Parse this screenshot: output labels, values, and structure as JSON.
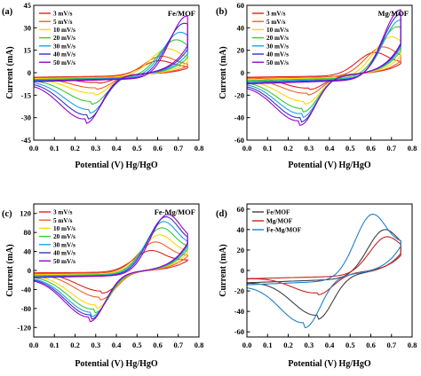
{
  "chart_data": [
    {
      "type": "line",
      "panel_label": "(a)",
      "sample": "Fe/MOF",
      "xlabel": "Potential (V) Hg/HgO",
      "ylabel": "Current (mA)",
      "xlim": [
        0.0,
        0.8
      ],
      "ylim": [
        -45,
        45
      ],
      "xticks": [
        "0.0",
        "0.1",
        "0.2",
        "0.3",
        "0.4",
        "0.5",
        "0.6",
        "0.7",
        "0.8"
      ],
      "yticks": [
        "-45",
        "-30",
        "-15",
        "0",
        "15",
        "30",
        "45"
      ],
      "legend_placement": "top-left",
      "series": [
        {
          "name": "3 mV/s",
          "color": "#e02020",
          "peak_ox": [
            0.61,
            8
          ],
          "peak_red": [
            0.31,
            -7
          ],
          "rest": -3,
          "e_max": 0.745
        },
        {
          "name": "5 mV/s",
          "color": "#f06020",
          "peak_ox": [
            0.62,
            11
          ],
          "peak_red": [
            0.3,
            -11
          ],
          "rest": -3.5,
          "e_max": 0.745
        },
        {
          "name": "10 mV/s",
          "color": "#ffd600",
          "peak_ox": [
            0.65,
            16
          ],
          "peak_red": [
            0.29,
            -15
          ],
          "rest": -4,
          "e_max": 0.745
        },
        {
          "name": "20 mV/s",
          "color": "#33cc33",
          "peak_ox": [
            0.69,
            22
          ],
          "peak_red": [
            0.28,
            -21
          ],
          "rest": -4.5,
          "e_max": 0.745
        },
        {
          "name": "30 mV/s",
          "color": "#1aa3e8",
          "peak_ox": [
            0.71,
            27
          ],
          "peak_red": [
            0.27,
            -27
          ],
          "rest": -5,
          "e_max": 0.745
        },
        {
          "name": "40 mV/s",
          "color": "#3333cc",
          "peak_ox": [
            0.73,
            33
          ],
          "peak_red": [
            0.26,
            -31
          ],
          "rest": -5.5,
          "e_max": 0.745
        },
        {
          "name": "50 mV/s",
          "color": "#9900cc",
          "peak_ox": [
            0.745,
            38
          ],
          "peak_red": [
            0.25,
            -34
          ],
          "rest": -6,
          "e_max": 0.745
        }
      ]
    },
    {
      "type": "line",
      "panel_label": "(b)",
      "sample": "Mg/MOF",
      "xlabel": "Potential (V) Hg/HgO",
      "ylabel": "Current (mA)",
      "xlim": [
        0.0,
        0.8
      ],
      "ylim": [
        -60,
        60
      ],
      "xticks": [
        "0.0",
        "0.1",
        "0.2",
        "0.3",
        "0.4",
        "0.5",
        "0.6",
        "0.7",
        "0.8"
      ],
      "yticks": [
        "-60",
        "-40",
        "-20",
        "0",
        "20",
        "40",
        "60"
      ],
      "legend_placement": "top-left",
      "series": [
        {
          "name": "3 mV/s",
          "color": "#e02020",
          "peak_ox": [
            0.62,
            18
          ],
          "peak_red": [
            0.3,
            -15
          ],
          "rest": -4,
          "e_max": 0.745
        },
        {
          "name": "5 mV/s",
          "color": "#f06020",
          "peak_ox": [
            0.66,
            23
          ],
          "peak_red": [
            0.29,
            -20
          ],
          "rest": -5,
          "e_max": 0.745
        },
        {
          "name": "10 mV/s",
          "color": "#ffd600",
          "peak_ox": [
            0.7,
            32
          ],
          "peak_red": [
            0.28,
            -28
          ],
          "rest": -6,
          "e_max": 0.745
        },
        {
          "name": "20 mV/s",
          "color": "#33cc33",
          "peak_ox": [
            0.73,
            41
          ],
          "peak_red": [
            0.27,
            -35
          ],
          "rest": -7,
          "e_max": 0.745
        },
        {
          "name": "30 mV/s",
          "color": "#1aa3e8",
          "peak_ox": [
            0.745,
            47
          ],
          "peak_red": [
            0.265,
            -40
          ],
          "rest": -8,
          "e_max": 0.745
        },
        {
          "name": "40 mV/s",
          "color": "#3333cc",
          "peak_ox": [
            0.745,
            52
          ],
          "peak_red": [
            0.26,
            -44
          ],
          "rest": -9,
          "e_max": 0.745
        },
        {
          "name": "50 mV/s",
          "color": "#9900cc",
          "peak_ox": [
            0.745,
            56
          ],
          "peak_red": [
            0.255,
            -47
          ],
          "rest": -10,
          "e_max": 0.745
        }
      ]
    },
    {
      "type": "line",
      "panel_label": "(c)",
      "sample": "Fe-Mg/MOF",
      "xlabel": "Potential (V) Hg/HgO",
      "ylabel": "Current (mA)",
      "xlim": [
        0.0,
        0.8
      ],
      "ylim": [
        -140,
        140
      ],
      "xticks": [
        "0.0",
        "0.1",
        "0.2",
        "0.3",
        "0.4",
        "0.5",
        "0.6",
        "0.7",
        "0.8"
      ],
      "yticks": [
        "-120",
        "-80",
        "-40",
        "0",
        "40",
        "80",
        "120"
      ],
      "legend_placement": "top-left",
      "series": [
        {
          "name": "3 mV/s",
          "color": "#e02020",
          "peak_ox": [
            0.57,
            42
          ],
          "peak_red": [
            0.33,
            -48
          ],
          "rest": -5,
          "e_max": 0.745
        },
        {
          "name": "5 mV/s",
          "color": "#f06020",
          "peak_ox": [
            0.59,
            60
          ],
          "peak_red": [
            0.32,
            -62
          ],
          "rest": -7,
          "e_max": 0.745
        },
        {
          "name": "10 mV/s",
          "color": "#ffd600",
          "peak_ox": [
            0.61,
            75
          ],
          "peak_red": [
            0.3,
            -80
          ],
          "rest": -9,
          "e_max": 0.745
        },
        {
          "name": "20 mV/s",
          "color": "#33cc33",
          "peak_ox": [
            0.62,
            90
          ],
          "peak_red": [
            0.29,
            -90
          ],
          "rest": -11,
          "e_max": 0.745
        },
        {
          "name": "30 mV/s",
          "color": "#1aa3e8",
          "peak_ox": [
            0.63,
            103
          ],
          "peak_red": [
            0.28,
            -97
          ],
          "rest": -13,
          "e_max": 0.745
        },
        {
          "name": "40 mV/s",
          "color": "#3333cc",
          "peak_ox": [
            0.64,
            113
          ],
          "peak_red": [
            0.275,
            -103
          ],
          "rest": -14,
          "e_max": 0.745
        },
        {
          "name": "50 mV/s",
          "color": "#9900cc",
          "peak_ox": [
            0.65,
            118
          ],
          "peak_red": [
            0.27,
            -108
          ],
          "rest": -15,
          "e_max": 0.745
        }
      ]
    },
    {
      "type": "line",
      "panel_label": "(d)",
      "sample": "",
      "xlabel": "Potential (V) Hg/HgO",
      "ylabel": "Current (mA)",
      "xlim": [
        0.0,
        0.8
      ],
      "ylim": [
        -65,
        65
      ],
      "xticks": [
        "0.0",
        "0.1",
        "0.2",
        "0.3",
        "0.4",
        "0.5",
        "0.6",
        "0.7",
        "0.8"
      ],
      "yticks": [
        "-60",
        "-40",
        "-20",
        "0",
        "20",
        "40",
        "60"
      ],
      "legend_placement": "top-left",
      "series": [
        {
          "name": "Fe/MOF",
          "color": "#404040",
          "peak_ox": [
            0.67,
            40
          ],
          "peak_red": [
            0.34,
            -48
          ],
          "rest": -12,
          "e_max": 0.745
        },
        {
          "name": "Mg/MOF",
          "color": "#cc2222",
          "peak_ox": [
            0.68,
            33
          ],
          "peak_red": [
            0.34,
            -24
          ],
          "rest": -8,
          "e_max": 0.745
        },
        {
          "name": "Fe-Mg/MOF",
          "color": "#1f7fd0",
          "peak_ox": [
            0.61,
            55
          ],
          "peak_red": [
            0.28,
            -56
          ],
          "rest": -14,
          "e_max": 0.745
        }
      ]
    }
  ]
}
